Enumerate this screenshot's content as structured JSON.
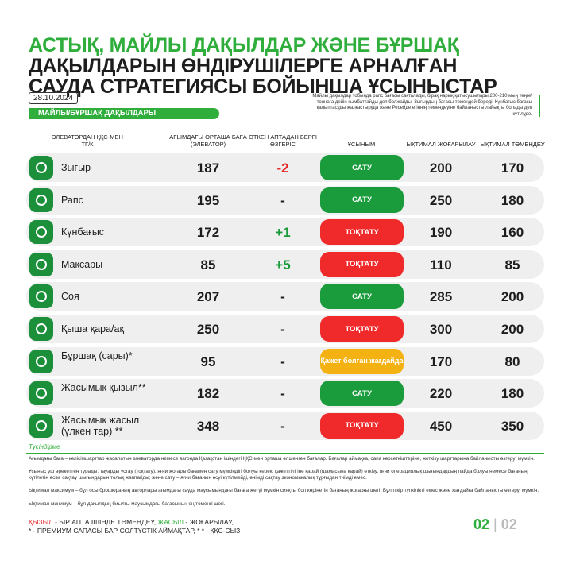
{
  "header": {
    "title_lines": [
      "АСТЫҚ, МАЙЛЫ ДАҚЫЛДАР ЖӘНЕ БҰРШАҚ",
      "ДАҚЫЛДАРЫН ӨНДІРУШІЛЕРГЕ АРНАЛҒАН",
      "САУДА СТРАТЕГИЯСЫ БОЙЫНША ҰСЫНЫСТАР"
    ],
    "date": "28.10.2024",
    "note": "Майлы дақылдар тобында рапс бағасы сақталады, бірақ нарық қатысушылары 200-210 мың теңге/тоннаға дейін қымбаттайды деп болжайды. Зығырдың бағасы төмендей береді. Күнбағыс бағасы қалыптасуды жалғастыруда және Ресейде егіннің төмендеуіне байланысты лайықты болады деп күтілуде.",
    "section": "МАЙЛЫ/БҰРШАҚ ДАҚЫЛДАРЫ"
  },
  "table": {
    "columns": [
      "ЭЛЕВАТОРДАН ҚҚС-МЕН ТГ/К",
      "АҒЫМДАҒЫ ОРТАША БАҒА (ЭЛЕВАТОР)",
      "ӨТКЕН АПТАДАН БЕРГІ ӨЗГЕРІС",
      "ҰСЫНЫМ",
      "ЫҚТИМАЛ ЖОҒАРЫЛАУ",
      "ЫҚТИМАЛ ТӨМЕНДЕУ"
    ],
    "rows": [
      {
        "name": "Зығыр",
        "price": "187",
        "change": "-2",
        "change_color": "#e52b2b",
        "rec": "САТУ",
        "rec_color": "#1a9b3c",
        "up": "200",
        "down": "170"
      },
      {
        "name": "Рапс",
        "price": "195",
        "change": "-",
        "change_color": "#1d1d1d",
        "rec": "САТУ",
        "rec_color": "#1a9b3c",
        "up": "250",
        "down": "180"
      },
      {
        "name": "Күнбағыс",
        "price": "172",
        "change": "+1",
        "change_color": "#1a9b3c",
        "rec": "ТОҚТАТУ",
        "rec_color": "#f02a2a",
        "up": "190",
        "down": "160"
      },
      {
        "name": "Мақсары",
        "price": "85",
        "change": "+5",
        "change_color": "#1a9b3c",
        "rec": "ТОҚТАТУ",
        "rec_color": "#f02a2a",
        "up": "110",
        "down": "85"
      },
      {
        "name": "Соя",
        "price": "207",
        "change": "-",
        "change_color": "#1d1d1d",
        "rec": "САТУ",
        "rec_color": "#1a9b3c",
        "up": "285",
        "down": "200"
      },
      {
        "name": "Қыша қара/ақ",
        "price": "250",
        "change": "-",
        "change_color": "#1d1d1d",
        "rec": "ТОҚТАТУ",
        "rec_color": "#f02a2a",
        "up": "300",
        "down": "200"
      },
      {
        "name": "Бұршақ (сары)*",
        "price": "95",
        "change": "-",
        "change_color": "#1d1d1d",
        "rec": "Қажет болған жағдайда",
        "rec_color": "#f4b212",
        "up": "170",
        "down": "80"
      },
      {
        "name": "Жасымық қызыл**",
        "price": "182",
        "change": "-",
        "change_color": "#1d1d1d",
        "rec": "САТУ",
        "rec_color": "#1a9b3c",
        "up": "220",
        "down": "180"
      },
      {
        "name": "Жасымық жасыл (үлкен тар) **",
        "price": "348",
        "change": "-",
        "change_color": "#1d1d1d",
        "rec": "ТОҚТАТУ",
        "rec_color": "#f02a2a",
        "up": "450",
        "down": "350"
      }
    ]
  },
  "footnotes": {
    "title": "Түсіндірме",
    "paragraphs": [
      "Ағымдағы баға – келісімшарттар жасалатын элеваторда немесе вагонда Қазақстан ішіндегі ҚҚС-мен орташа өлшенген бағалар. Бағалар аймаққа, сапа көрсеткіштеріне, жеткізу шарттарына байланысты өзгеруі мүмкін.",
      "Ұсыныс үш әрекеттен тұрады: тауарды ұстау (тоқтату), яғни жоғары бағамен сату мүмкіндігі болуы керек; қажеттілігіне қарай (шамасына қарай) өткізу, яғни операциялық шығындардың пайда болуы немесе бағаның күтілетін өсімі сақтау шығындарын толық жаппайды; және сату – яғни бағаның өсуі күтілмейді, өнімді сақтау экономикалық тұрғыдан тиімді емес.",
      "Ықтимал максимум – бұл осы брошюраның авторлары ағымдағы сауда маусымындағы бағаға жетуі мүмкін сияқты боп көрінетін бағаның жоғарғы шегі. Бұл пікір түпкілікті емес және жағдайға байланысты өзгеруі мүмкін.",
      "Ықтимал минимум – бұл дақылдың биылғы маусымдағы бағасының ең төменгі шегі."
    ]
  },
  "legend": {
    "red_word": "ҚЫЗЫЛ",
    "red_text": " - БІР АПТА ІШІНДЕ ТӨМЕНДЕУ, ",
    "green_word": "ЖАСЫЛ",
    "green_text": " - ЖОҒАРЫЛАУ,",
    "line2": "* - ПРЕМИУМ САПАСЫ БАР СОЛТҮСТІК АЙМАҚТАР, * * - ҚҚС-СЫЗ"
  },
  "page": {
    "current": "02",
    "total": "02"
  }
}
